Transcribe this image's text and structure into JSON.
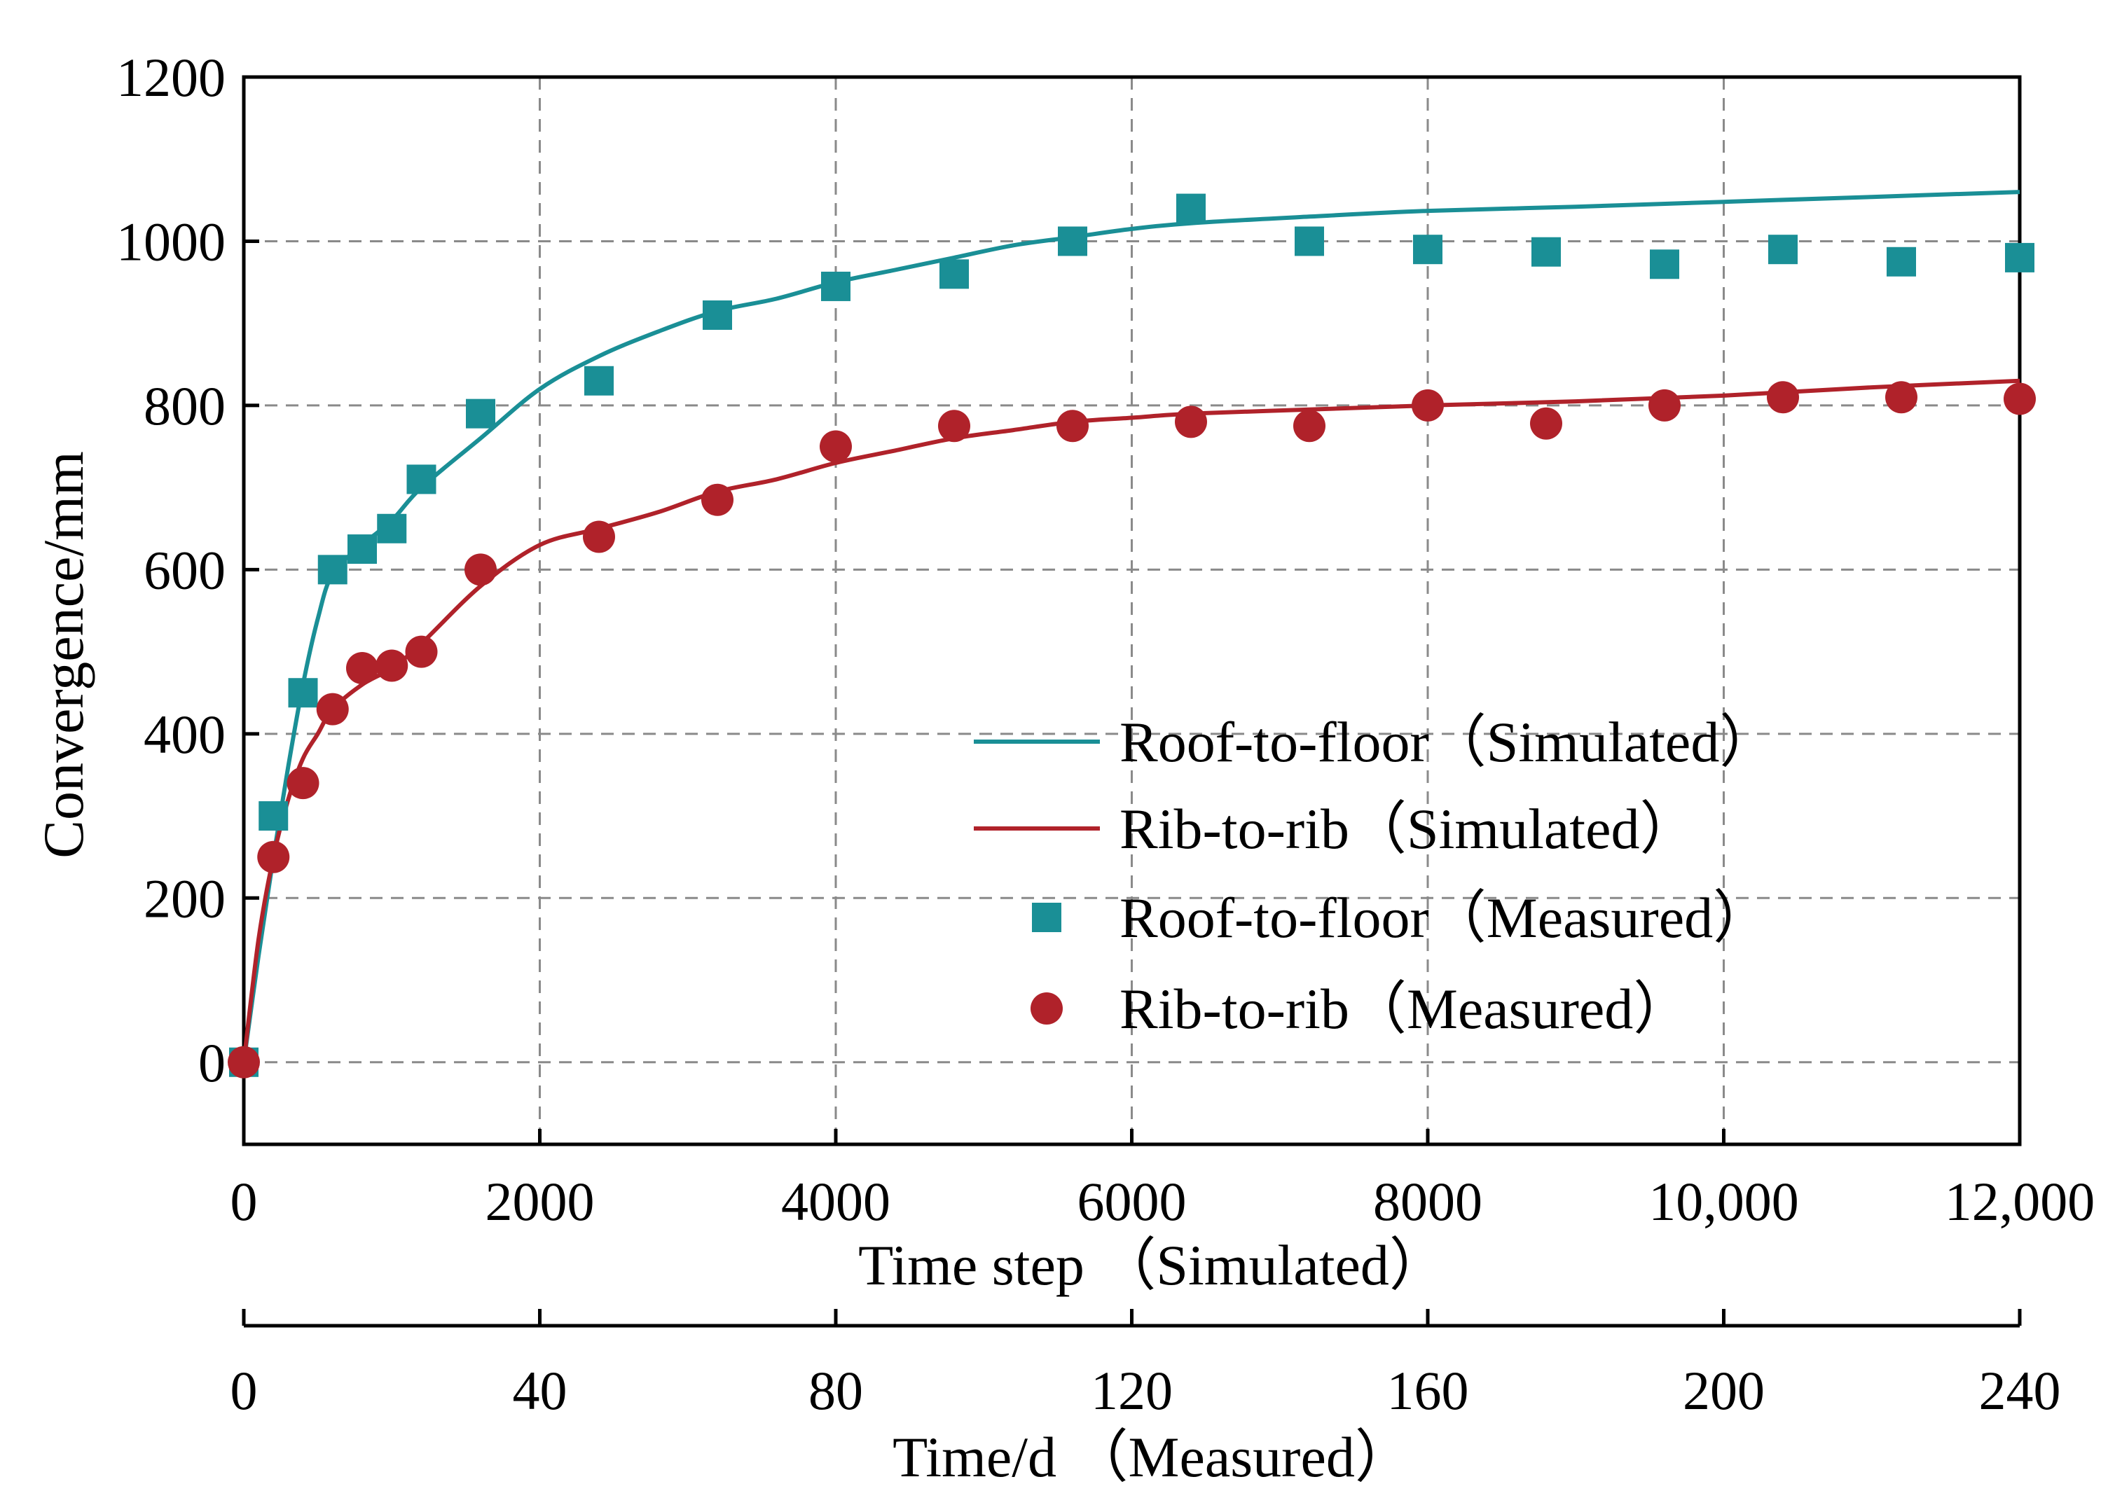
{
  "chart_data": {
    "type": "line",
    "title": "",
    "ylabel": "Convergence/mm",
    "ylim": [
      -100,
      1200
    ],
    "yticks": [
      0,
      200,
      400,
      600,
      800,
      1000,
      1200
    ],
    "ytick_labels": [
      "0",
      "200",
      "400",
      "600",
      "800",
      "1000",
      "1200"
    ],
    "x_primary": {
      "label": "Time step （Simulated）",
      "range": [
        0,
        12000
      ],
      "ticks": [
        0,
        2000,
        4000,
        6000,
        8000,
        10000,
        12000
      ],
      "tick_labels": [
        "0",
        "2000",
        "4000",
        "6000",
        "8000",
        "10,000",
        "12,000"
      ]
    },
    "x_secondary": {
      "label": "Time/d （Measured）",
      "range": [
        0,
        240
      ],
      "ticks": [
        0,
        40,
        80,
        120,
        160,
        200,
        240
      ],
      "tick_labels": [
        "0",
        "40",
        "80",
        "120",
        "160",
        "200",
        "240"
      ]
    },
    "grid": true,
    "legend_position": "center-right",
    "series": [
      {
        "name": "Roof-to-floor（Simulated）",
        "kind": "line",
        "color": "#1a8f96",
        "x": [
          0,
          100,
          200,
          300,
          400,
          500,
          600,
          800,
          1000,
          1200,
          1600,
          2000,
          2400,
          2800,
          3200,
          3600,
          4000,
          4400,
          4800,
          5200,
          5600,
          6000,
          6400,
          7200,
          8000,
          9000,
          10000,
          11000,
          12000
        ],
        "y": [
          0,
          130,
          250,
          360,
          460,
          540,
          595,
          630,
          660,
          700,
          760,
          820,
          860,
          890,
          915,
          930,
          950,
          965,
          980,
          995,
          1005,
          1015,
          1022,
          1030,
          1037,
          1042,
          1048,
          1054,
          1060
        ]
      },
      {
        "name": "Rib-to-rib（Simulated）",
        "kind": "line",
        "color": "#b0222a",
        "x": [
          0,
          100,
          200,
          300,
          400,
          500,
          600,
          800,
          1000,
          1200,
          1600,
          2000,
          2400,
          2800,
          3200,
          3600,
          4000,
          4400,
          4800,
          5200,
          5600,
          6000,
          6400,
          7200,
          8000,
          9000,
          10000,
          11000,
          12000
        ],
        "y": [
          0,
          150,
          250,
          320,
          370,
          400,
          430,
          460,
          480,
          510,
          580,
          630,
          650,
          670,
          695,
          710,
          730,
          745,
          760,
          770,
          780,
          785,
          790,
          795,
          800,
          805,
          812,
          822,
          830
        ]
      },
      {
        "name": "Roof-to-floor（Measured）",
        "kind": "scatter",
        "marker": "square",
        "color": "#1a8f96",
        "x": [
          0,
          4,
          8,
          12,
          16,
          20,
          24,
          32,
          48,
          64,
          80,
          96,
          112,
          128,
          144,
          160,
          176,
          192,
          208,
          224,
          240
        ],
        "y": [
          0,
          300,
          450,
          600,
          625,
          650,
          710,
          790,
          830,
          910,
          945,
          960,
          1000,
          1040,
          1000,
          990,
          987,
          972,
          990,
          975,
          980
        ]
      },
      {
        "name": "Rib-to-rib（Measured）",
        "kind": "scatter",
        "marker": "circle",
        "color": "#b0222a",
        "x": [
          0,
          4,
          8,
          12,
          16,
          20,
          24,
          32,
          48,
          64,
          80,
          96,
          112,
          128,
          144,
          160,
          176,
          192,
          208,
          224,
          240
        ],
        "y": [
          0,
          250,
          340,
          430,
          480,
          483,
          500,
          600,
          640,
          685,
          750,
          775,
          775,
          780,
          775,
          800,
          778,
          800,
          810,
          810,
          808
        ]
      }
    ]
  }
}
